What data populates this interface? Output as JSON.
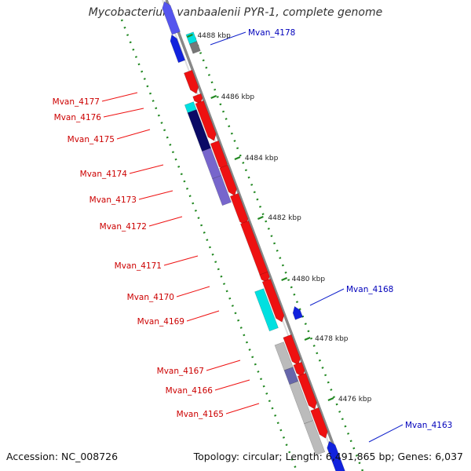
{
  "title": "Mycobacterium vanbaalenii PYR-1, complete genome",
  "footer": {
    "accession": "Accession: NC_008726",
    "topology": "Topology: circular; Length: 6,491,865 bp; Genes: 6,037"
  },
  "colors": {
    "forward_gene": "#ee1111",
    "reverse_gene": "#1122dd",
    "cyan_gene": "#00e0e0",
    "navy_gene": "#0a0a66",
    "lavender_gene": "#7766cc",
    "gray_gene": "#bbbbbb",
    "backbone": "#888888",
    "ruler": "#228822"
  },
  "ruler_ticks": [
    "4488 kbp",
    "4486 kbp",
    "4484 kbp",
    "4482 kbp",
    "4480 kbp",
    "4478 kbp",
    "4476 kbp"
  ],
  "left_labels": [
    "Mvan_4177",
    "Mvan_4176",
    "Mvan_4175",
    "Mvan_4174",
    "Mvan_4173",
    "Mvan_4172",
    "Mvan_4171",
    "Mvan_4170",
    "Mvan_4169",
    "Mvan_4167",
    "Mvan_4166",
    "Mvan_4165"
  ],
  "right_labels": [
    "Mvan_4178",
    "Mvan_4168",
    "Mvan_4163"
  ]
}
